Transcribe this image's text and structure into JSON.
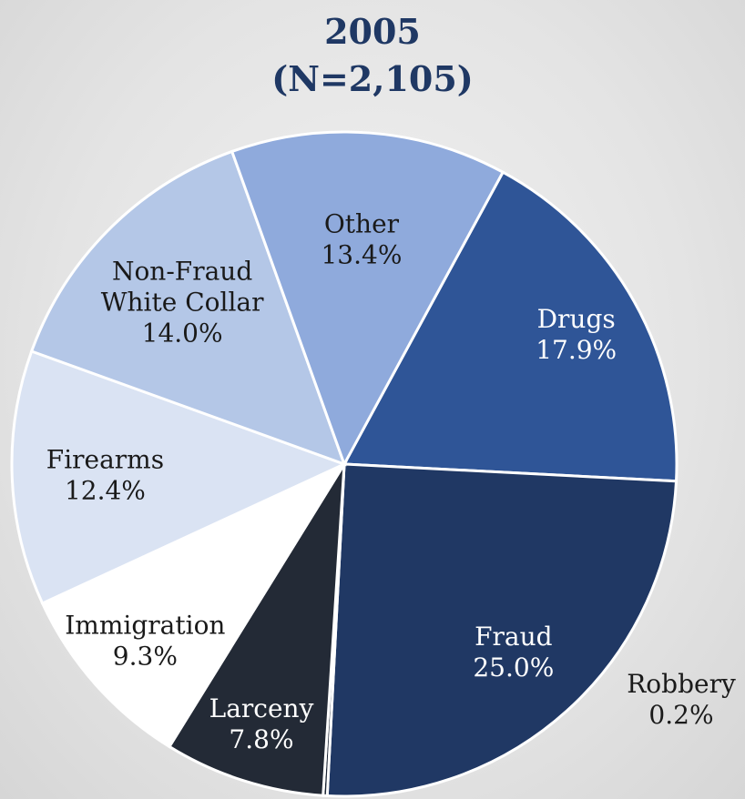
{
  "chart_data": {
    "type": "pie",
    "title": "2005",
    "subtitle": "(N=2,105)",
    "slices": [
      {
        "name": "Drugs",
        "lines": [
          "Drugs"
        ],
        "value": 17.9,
        "label": "17.9%",
        "color": "#2f5597",
        "text_color": "#ffffff"
      },
      {
        "name": "Fraud",
        "lines": [
          "Fraud"
        ],
        "value": 25.0,
        "label": "25.0%",
        "color": "#203864",
        "text_color": "#ffffff"
      },
      {
        "name": "Robbery",
        "lines": [
          "Robbery"
        ],
        "value": 0.2,
        "label": "0.2%",
        "color": "#1b2433",
        "text_color": "#1a1a1a"
      },
      {
        "name": "Larceny",
        "lines": [
          "Larceny"
        ],
        "value": 7.8,
        "label": "7.8%",
        "color": "#232a36",
        "text_color": "#ffffff"
      },
      {
        "name": "Immigration",
        "lines": [
          "Immigration"
        ],
        "value": 9.3,
        "label": "9.3%",
        "color": "#ffffff",
        "text_color": "#1a1a1a"
      },
      {
        "name": "Firearms",
        "lines": [
          "Firearms"
        ],
        "value": 12.4,
        "label": "12.4%",
        "color": "#dae3f3",
        "text_color": "#1a1a1a"
      },
      {
        "name": "Non-Fraud White Collar",
        "lines": [
          "Non-Fraud",
          "White Collar"
        ],
        "value": 14.0,
        "label": "14.0%",
        "color": "#b4c7e7",
        "text_color": "#1a1a1a"
      },
      {
        "name": "Other",
        "lines": [
          "Other"
        ],
        "value": 13.4,
        "label": "13.4%",
        "color": "#8faadc",
        "text_color": "#1a1a1a"
      }
    ]
  }
}
